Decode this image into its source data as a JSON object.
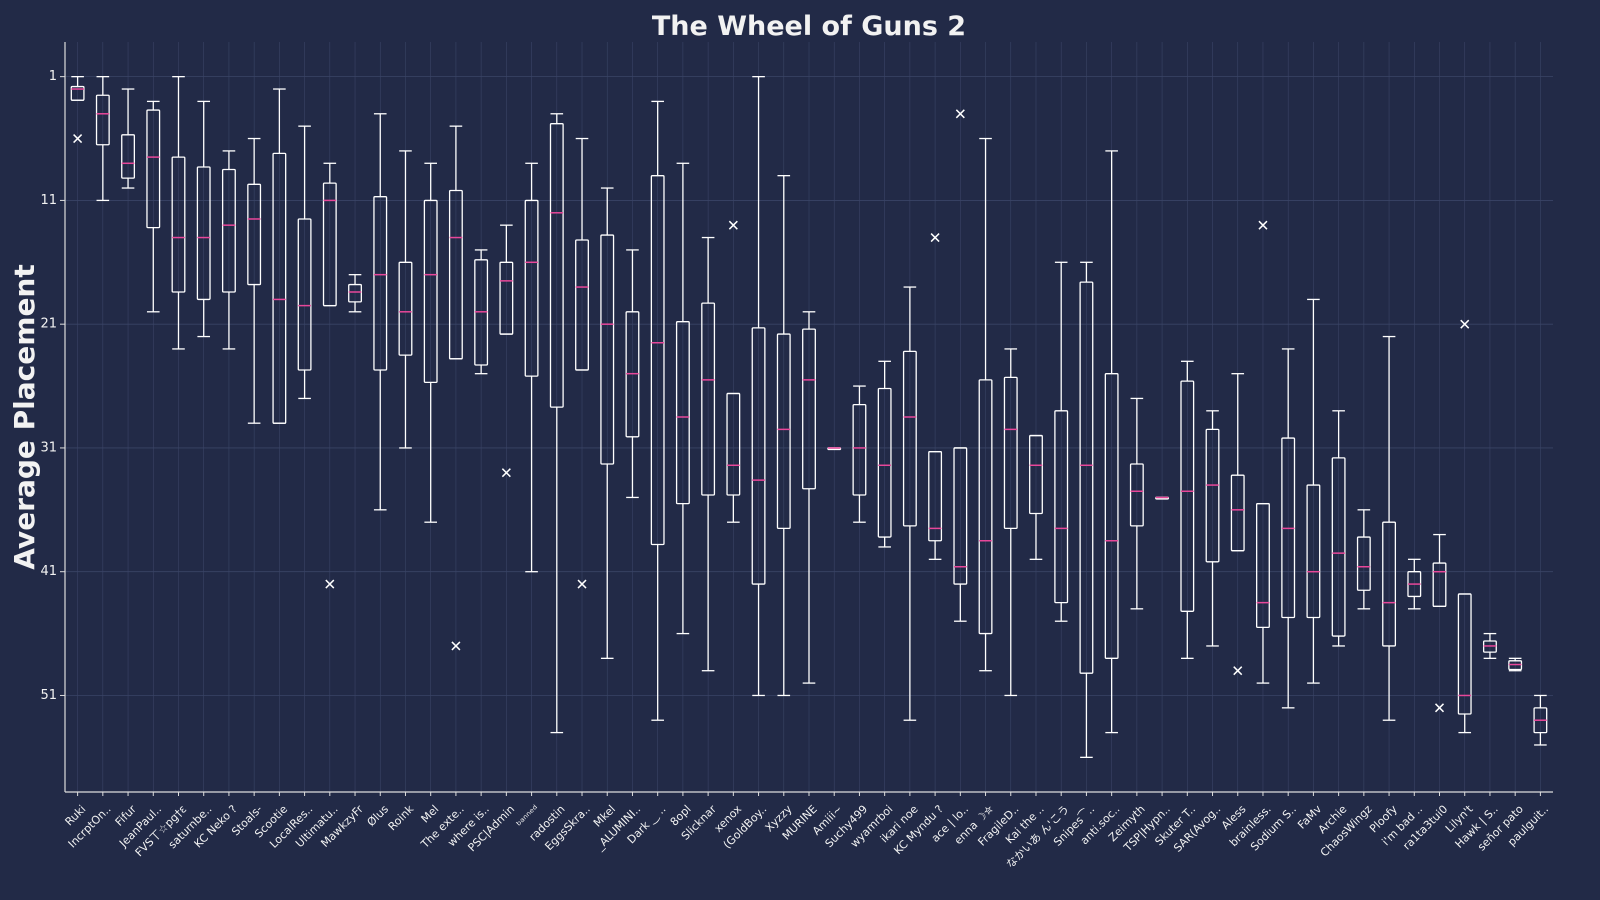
{
  "chart_data": {
    "type": "box",
    "title": "The Wheel of Guns 2",
    "y_label": "Average Placement",
    "ylim": [
      -1.8,
      58.8
    ],
    "y_inverted": true,
    "yticks": [
      1,
      11,
      21,
      31,
      41,
      51
    ],
    "grid": true,
    "box_color": "#ffffff",
    "median_color": "#e8479a",
    "flier_color": "#ffffff",
    "categories": [
      "Ruki",
      "IncrptOn..",
      "Fifur",
      "JeanPaul..",
      "FVS丅☆pg†ε",
      "saturnbe..",
      "KC Neko ?",
      "Stoals-",
      "Scootie",
      "LocalRes..",
      "Ultimatu..",
      "MawkzyFr",
      "Ølus",
      "Roink",
      "Mel",
      "The exte..",
      "where is..",
      "PSC|Admin",
      "ᵇᵃⁿⁿᵉᵈ",
      "radostin",
      "EggsSkra..",
      "Mkel",
      "_ALUMINI..",
      "Dark ‿ ..",
      "8opl",
      "Slicknar",
      "xenox",
      "(GoldBoy..",
      "Xyzzy",
      "MURINE",
      "Amiii~",
      "Suchy499",
      "wyamrboi",
      "ikari noe",
      "KC Myndu ?",
      "ace | lo..",
      "enna ☽✮",
      "FragileD..",
      "Kai the ..",
      "なかいあ ん'こう",
      "Snipes⁀..",
      "anti.soc..",
      "Zeimyth",
      "TSP|Hypn..",
      "Skuter T..",
      "SAR(Avog..",
      "Aless",
      "brainless.",
      "Sodium S..",
      "FaMv",
      "Archie",
      "ChaosWingz",
      "Ploofy",
      "i'm bad ..",
      "ra1ta3tui0",
      "Lilyn't",
      "Hawk | S..",
      "señor pato",
      "paulguit.."
    ],
    "boxes": [
      {
        "low": 1,
        "q1": 1.8,
        "median": 2,
        "q3": 2.9,
        "high": 2.9,
        "fliers": [
          6
        ]
      },
      {
        "low": 1,
        "q1": 2.5,
        "median": 4,
        "q3": 6.5,
        "high": 11
      },
      {
        "low": 2,
        "q1": 5.7,
        "median": 8,
        "q3": 9.2,
        "high": 10
      },
      {
        "low": 3,
        "q1": 3.7,
        "median": 7.5,
        "q3": 13.2,
        "high": 20
      },
      {
        "low": 1,
        "q1": 7.5,
        "median": 14,
        "q3": 18.4,
        "high": 23
      },
      {
        "low": 3,
        "q1": 8.3,
        "median": 14,
        "q3": 19,
        "high": 22
      },
      {
        "low": 7,
        "q1": 8.5,
        "median": 13,
        "q3": 18.4,
        "high": 23
      },
      {
        "low": 6,
        "q1": 9.7,
        "median": 12.5,
        "q3": 17.8,
        "high": 29
      },
      {
        "low": 2,
        "q1": 7.2,
        "median": 19,
        "q3": 29,
        "high": 29
      },
      {
        "low": 5,
        "q1": 12.5,
        "median": 19.5,
        "q3": 24.7,
        "high": 27
      },
      {
        "low": 8,
        "q1": 9.6,
        "median": 11,
        "q3": 19.5,
        "high": 19.5,
        "fliers": [
          42
        ]
      },
      {
        "low": 17,
        "q1": 17.8,
        "median": 18.4,
        "q3": 19.2,
        "high": 20
      },
      {
        "low": 4,
        "q1": 10.7,
        "median": 17,
        "q3": 24.7,
        "high": 36
      },
      {
        "low": 7,
        "q1": 16,
        "median": 20,
        "q3": 23.5,
        "high": 31
      },
      {
        "low": 8,
        "q1": 11,
        "median": 17,
        "q3": 25.7,
        "high": 37
      },
      {
        "low": 5,
        "q1": 10.2,
        "median": 14,
        "q3": 23.8,
        "high": 23.8,
        "fliers": [
          47
        ]
      },
      {
        "low": 15,
        "q1": 15.8,
        "median": 20,
        "q3": 24.3,
        "high": 25
      },
      {
        "low": 13,
        "q1": 16,
        "median": 17.5,
        "q3": 21.8,
        "high": 21.8,
        "fliers": [
          33
        ]
      },
      {
        "low": 8,
        "q1": 11,
        "median": 16,
        "q3": 25.2,
        "high": 41
      },
      {
        "low": 4,
        "q1": 4.8,
        "median": 12,
        "q3": 27.7,
        "high": 54
      },
      {
        "low": 6,
        "q1": 14.2,
        "median": 18,
        "q3": 24.7,
        "high": 24.7,
        "fliers": [
          42
        ]
      },
      {
        "low": 10,
        "q1": 13.8,
        "median": 21,
        "q3": 32.3,
        "high": 48
      },
      {
        "low": 15,
        "q1": 20,
        "median": 25,
        "q3": 30.1,
        "high": 35
      },
      {
        "low": 3,
        "q1": 9,
        "median": 22.5,
        "q3": 38.8,
        "high": 53
      },
      {
        "low": 8,
        "q1": 20.8,
        "median": 28.5,
        "q3": 35.5,
        "high": 46
      },
      {
        "low": 14,
        "q1": 19.3,
        "median": 25.5,
        "q3": 34.8,
        "high": 49
      },
      {
        "low": 26.6,
        "q1": 26.6,
        "median": 32.4,
        "q3": 34.8,
        "high": 37,
        "fliers": [
          13
        ]
      },
      {
        "low": 1,
        "q1": 21.3,
        "median": 33.6,
        "q3": 42,
        "high": 51
      },
      {
        "low": 9,
        "q1": 21.8,
        "median": 29.5,
        "q3": 37.5,
        "high": 51
      },
      {
        "low": 20,
        "q1": 21.4,
        "median": 25.5,
        "q3": 34.3,
        "high": 50
      },
      {
        "low": 31,
        "q1": 31,
        "median": 31,
        "q3": 31,
        "high": 31
      },
      {
        "low": 26,
        "q1": 27.5,
        "median": 31,
        "q3": 34.8,
        "high": 37
      },
      {
        "low": 24,
        "q1": 26.2,
        "median": 32.4,
        "q3": 38.2,
        "high": 39
      },
      {
        "low": 18,
        "q1": 23.2,
        "median": 28.5,
        "q3": 37.3,
        "high": 53
      },
      {
        "low": 31.3,
        "q1": 31.3,
        "median": 37.5,
        "q3": 38.5,
        "high": 40,
        "fliers": [
          14
        ]
      },
      {
        "low": 31,
        "q1": 31,
        "median": 40.6,
        "q3": 42,
        "high": 45,
        "fliers": [
          4
        ]
      },
      {
        "low": 6,
        "q1": 25.5,
        "median": 38.5,
        "q3": 46,
        "high": 49
      },
      {
        "low": 23,
        "q1": 25.3,
        "median": 29.5,
        "q3": 37.5,
        "high": 51
      },
      {
        "low": 30,
        "q1": 30,
        "median": 32.4,
        "q3": 36.3,
        "high": 40
      },
      {
        "low": 16,
        "q1": 28,
        "median": 37.5,
        "q3": 43.5,
        "high": 45
      },
      {
        "low": 16,
        "q1": 17.6,
        "median": 32.4,
        "q3": 49.2,
        "high": 56
      },
      {
        "low": 7,
        "q1": 25,
        "median": 38.5,
        "q3": 48,
        "high": 54
      },
      {
        "low": 27,
        "q1": 32.3,
        "median": 34.5,
        "q3": 37.3,
        "high": 44
      },
      {
        "low": 35,
        "q1": 35,
        "median": 35,
        "q3": 35,
        "high": 35
      },
      {
        "low": 24,
        "q1": 25.6,
        "median": 34.5,
        "q3": 44.2,
        "high": 48
      },
      {
        "low": 28,
        "q1": 29.5,
        "median": 34,
        "q3": 40.2,
        "high": 47
      },
      {
        "low": 25,
        "q1": 33.2,
        "median": 36,
        "q3": 39.3,
        "high": 39.3,
        "fliers": [
          49
        ]
      },
      {
        "low": 35.5,
        "q1": 35.5,
        "median": 43.5,
        "q3": 45.5,
        "high": 50,
        "fliers": [
          13
        ]
      },
      {
        "low": 23,
        "q1": 30.2,
        "median": 37.5,
        "q3": 44.7,
        "high": 52
      },
      {
        "low": 19,
        "q1": 34,
        "median": 41,
        "q3": 44.7,
        "high": 50
      },
      {
        "low": 28,
        "q1": 31.8,
        "median": 39.5,
        "q3": 46.2,
        "high": 47
      },
      {
        "low": 36,
        "q1": 38.2,
        "median": 40.6,
        "q3": 42.5,
        "high": 44
      },
      {
        "low": 22,
        "q1": 37,
        "median": 43.5,
        "q3": 47,
        "high": 53
      },
      {
        "low": 40,
        "q1": 41,
        "median": 42,
        "q3": 43,
        "high": 44
      },
      {
        "low": 38,
        "q1": 40.3,
        "median": 41,
        "q3": 43.8,
        "high": 43.8,
        "fliers": [
          52
        ]
      },
      {
        "low": 42.8,
        "q1": 42.8,
        "median": 51,
        "q3": 52.5,
        "high": 54,
        "fliers": [
          21
        ]
      },
      {
        "low": 46,
        "q1": 46.6,
        "median": 47,
        "q3": 47.5,
        "high": 48
      },
      {
        "low": 48,
        "q1": 48.2,
        "median": 48.5,
        "q3": 48.9,
        "high": 49
      },
      {
        "low": 51,
        "q1": 52,
        "median": 53,
        "q3": 54,
        "high": 55
      }
    ]
  }
}
